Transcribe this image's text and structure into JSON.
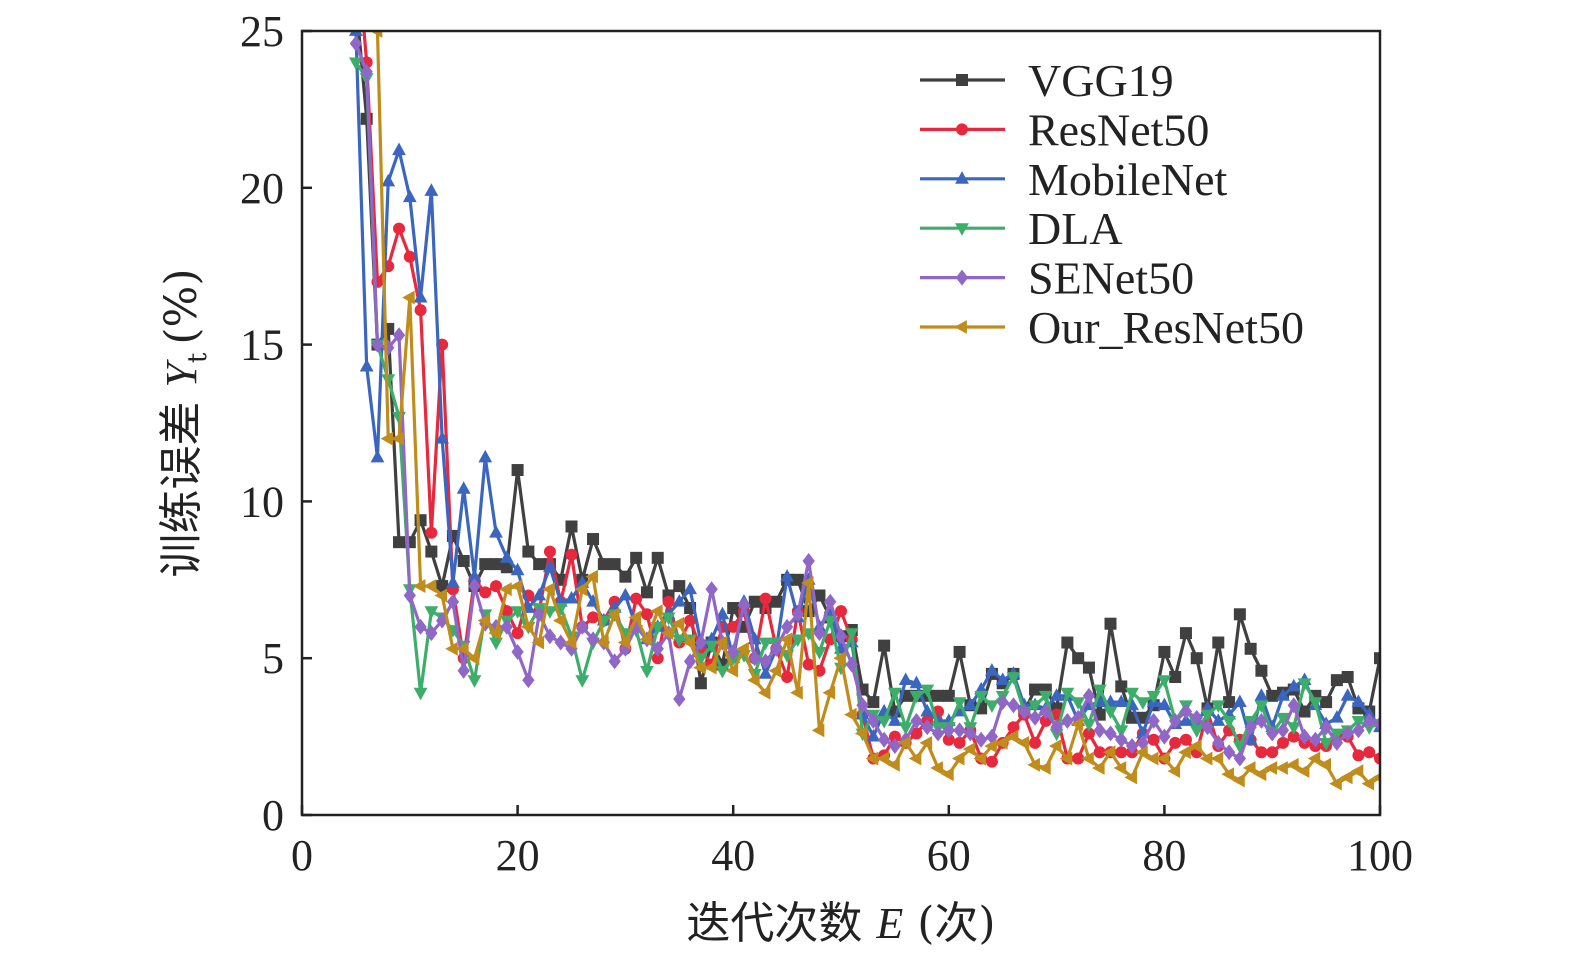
{
  "chart_data": {
    "type": "line",
    "title": "",
    "xlabel": "迭代次数 E (次)",
    "ylabel": "训练误差 Y_t (%)",
    "ylabel_parts": {
      "main": "训练误差",
      "var": "Y",
      "sub": "t",
      "unit": "(%)"
    },
    "xlabel_parts": {
      "main": "迭代次数",
      "var": "E",
      "unit": "(次)"
    },
    "xlim": [
      0,
      100
    ],
    "ylim": [
      0,
      25
    ],
    "xticks": [
      "0",
      "20",
      "40",
      "60",
      "80",
      "100"
    ],
    "yticks": [
      "0",
      "5",
      "10",
      "15",
      "20",
      "25"
    ],
    "grid": false,
    "legend_position": "top-right",
    "x_start": 5,
    "series": [
      {
        "name": "VGG19",
        "color": "#404040",
        "marker": "square",
        "values": [
          26,
          22.2,
          15,
          15.5,
          8.7,
          8.7,
          9.4,
          8.4,
          7.3,
          8.9,
          8.1,
          7.3,
          8.0,
          8.0,
          7.9,
          11.0,
          8.4,
          8.0,
          8.0,
          7.5,
          9.2,
          7.5,
          8.8,
          8.0,
          8.0,
          7.6,
          8.2,
          7.1,
          8.2,
          7.0,
          7.3,
          6.6,
          4.2,
          5.5,
          4.8,
          6.6,
          6.0,
          6.8,
          6.6,
          6.8,
          7.5,
          7.5,
          6.5,
          7.0,
          6.3,
          5.7,
          5.9,
          4.0,
          3.6,
          5.4,
          3.3,
          3.8,
          3.8,
          3.8,
          3.8,
          3.8,
          5.2,
          3.5,
          3.4,
          4.5,
          4.2,
          4.5,
          3.3,
          4.0,
          4.0,
          3.4,
          5.5,
          5.0,
          4.7,
          3.2,
          6.1,
          4.1,
          3.1,
          3.1,
          3.5,
          5.2,
          4.4,
          5.8,
          5.0,
          3.4,
          5.5,
          3.6,
          6.4,
          5.3,
          4.6,
          3.8,
          3.9,
          4.0,
          3.3,
          3.8,
          3.6,
          4.3,
          4.4,
          3.4,
          3.3,
          5.0
        ]
      },
      {
        "name": "ResNet50",
        "color": "#e8283c",
        "marker": "circle",
        "values": [
          28,
          24,
          17,
          17.5,
          18.7,
          17.8,
          16.1,
          9.0,
          15.0,
          7.2,
          5.0,
          7.5,
          7.1,
          7.3,
          6.5,
          5.8,
          7.0,
          6.5,
          8.4,
          6.8,
          8.3,
          6.0,
          6.3,
          6.2,
          6.8,
          5.3,
          6.9,
          6.4,
          5.0,
          6.8,
          5.5,
          6.2,
          5.3,
          4.8,
          6.0,
          6.0,
          6.5,
          5.0,
          6.9,
          5.3,
          4.4,
          6.5,
          4.8,
          4.6,
          5.6,
          6.5,
          5.6,
          3.2,
          1.8,
          1.9,
          2.5,
          2.3,
          2.6,
          3.0,
          3.3,
          2.4,
          2.3,
          2.7,
          1.8,
          1.7,
          2.3,
          2.8,
          3.2,
          2.3,
          3.0,
          3.2,
          1.8,
          1.8,
          2.6,
          2.0,
          2.0,
          2.0,
          2.0,
          2.6,
          2.4,
          1.8,
          2.3,
          2.4,
          2.0,
          3.3,
          2.2,
          2.7,
          2.4,
          2.4,
          2.0,
          2.0,
          2.3,
          2.5,
          2.3,
          2.2,
          2.2,
          2.5,
          2.5,
          1.9,
          2.0,
          1.8
        ]
      },
      {
        "name": "MobileNet",
        "color": "#3a66c0",
        "marker": "triangle-up",
        "values": [
          25,
          14.3,
          11.4,
          20.2,
          21.2,
          19.7,
          16.5,
          19.9,
          12,
          7.4,
          10.4,
          7.6,
          11.4,
          9.0,
          8.2,
          7.8,
          6.6,
          7.0,
          7.9,
          6.8,
          6.9,
          7.4,
          6.8,
          6.2,
          6.6,
          7.0,
          6.0,
          5.6,
          6.0,
          6.4,
          6.8,
          7.2,
          5.5,
          5.6,
          6.4,
          5.0,
          6.8,
          5.6,
          4.5,
          5.3,
          7.6,
          6.3,
          7.5,
          6.0,
          6.5,
          5.3,
          5.5,
          3.2,
          2.5,
          3.3,
          3.0,
          4.3,
          4.2,
          3.3,
          3.0,
          3.0,
          3.3,
          3.5,
          4.0,
          4.6,
          4.3,
          4.5,
          3.5,
          3.5,
          3.4,
          3.8,
          3.8,
          3.0,
          3.5,
          3.6,
          3.6,
          3.6,
          3.5,
          2.6,
          3.6,
          3.5,
          2.9,
          3.0,
          3.0,
          3.4,
          3.0,
          3.2,
          3.6,
          2.4,
          3.8,
          2.8,
          3.8,
          4.1,
          4.3,
          3.5,
          2.9,
          3.1,
          3.8,
          3.6,
          3.2,
          2.8
        ]
      },
      {
        "name": "DLA",
        "color": "#3cae6a",
        "marker": "triangle-down",
        "values": [
          24,
          23.5,
          15,
          13.9,
          12.7,
          7.2,
          3.9,
          6.5,
          6.3,
          5.9,
          5.4,
          4.3,
          6.4,
          5.5,
          6.2,
          6.5,
          6.0,
          6.6,
          6.5,
          6.6,
          5.7,
          4.3,
          5.5,
          6.2,
          6.4,
          5.8,
          5.9,
          4.6,
          6.0,
          6.3,
          5.6,
          5.6,
          5.0,
          5.4,
          4.6,
          5.0,
          5.1,
          4.5,
          5.5,
          5.5,
          5.1,
          5.6,
          5.8,
          5.2,
          6.2,
          4.7,
          5.8,
          2.6,
          3.2,
          3.0,
          3.9,
          2.8,
          3.8,
          4.0,
          2.8,
          2.8,
          3.6,
          2.8,
          3.8,
          3.5,
          3.8,
          4.4,
          3.3,
          3.5,
          3.8,
          2.6,
          3.9,
          3.6,
          2.9,
          4.0,
          3.3,
          2.7,
          3.9,
          3.6,
          3.8,
          4.3,
          3.0,
          3.5,
          2.7,
          3.2,
          3.5,
          3.0,
          2.2,
          3.0,
          3.5,
          2.6,
          3.1,
          2.8,
          4.2,
          3.6,
          2.3,
          2.6,
          2.7,
          3.0,
          2.8,
          2.9
        ]
      },
      {
        "name": "SENet50",
        "color": "#9066c6",
        "marker": "diamond",
        "values": [
          24.6,
          23.7,
          15,
          14.9,
          15.3,
          7.0,
          6.0,
          5.8,
          6.2,
          6.8,
          4.6,
          7.3,
          6.1,
          6.0,
          6.0,
          5.2,
          4.3,
          6.4,
          5.7,
          5.5,
          5.3,
          6.0,
          5.6,
          5.5,
          4.9,
          5.3,
          6.0,
          5.6,
          5.3,
          5.8,
          3.7,
          4.9,
          5.5,
          7.2,
          5.5,
          5.2,
          6.7,
          5.0,
          4.9,
          5.3,
          6.0,
          6.4,
          8.1,
          5.8,
          6.8,
          5.7,
          4.8,
          3.5,
          3.0,
          2.4,
          2.2,
          2.4,
          3.0,
          2.8,
          2.6,
          2.7,
          2.7,
          2.6,
          2.4,
          2.5,
          3.6,
          3.5,
          3.3,
          3.1,
          3.3,
          2.8,
          3.0,
          3.1,
          3.8,
          2.7,
          2.6,
          2.4,
          2.2,
          2.3,
          3.0,
          2.5,
          3.0,
          3.3,
          3.1,
          2.8,
          2.3,
          2.0,
          1.8,
          2.8,
          3.0,
          2.6,
          2.7,
          3.5,
          2.5,
          2.4,
          2.8,
          2.3,
          2.6,
          2.7,
          3.0,
          2.9
        ]
      },
      {
        "name": "Our_ResNet50",
        "color": "#c08c1c",
        "marker": "triangle-left",
        "values": [
          28,
          27,
          25,
          12,
          12,
          16.5,
          7.3,
          7.3,
          7.0,
          5.3,
          5.3,
          5.0,
          6.2,
          5.8,
          7.2,
          7.3,
          6.0,
          5.5,
          7.2,
          6.2,
          5.5,
          7.2,
          7.6,
          5.5,
          6.4,
          5.5,
          6.3,
          5.6,
          6.5,
          5.8,
          6.1,
          5.5,
          4.7,
          4.7,
          5.5,
          4.6,
          5.3,
          4.3,
          3.9,
          4.6,
          5.6,
          3.9,
          7.4,
          2.7,
          3.9,
          5.0,
          3.2,
          2.6,
          1.8,
          1.8,
          1.6,
          2.3,
          1.8,
          2.3,
          1.5,
          1.3,
          1.8,
          2.1,
          1.8,
          2.2,
          2.3,
          2.5,
          2.3,
          1.6,
          1.5,
          2.2,
          1.8,
          2.9,
          1.8,
          1.5,
          2.0,
          1.5,
          1.2,
          2.0,
          1.8,
          1.8,
          1.4,
          2.0,
          2.2,
          1.8,
          1.8,
          1.3,
          1.1,
          1.5,
          1.3,
          1.5,
          1.5,
          1.6,
          1.4,
          1.8,
          1.6,
          1.0,
          1.2,
          1.4,
          1.0,
          1.2
        ]
      }
    ]
  }
}
